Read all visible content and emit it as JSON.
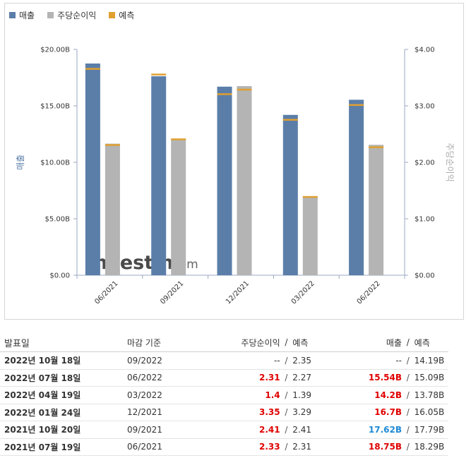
{
  "legend": [
    {
      "label": "매출",
      "color": "#5b7ea9"
    },
    {
      "label": "주당순이익",
      "color": "#b4b4b4"
    },
    {
      "label": "예측",
      "color": "#e0a030"
    }
  ],
  "chart_data": {
    "type": "bar",
    "categories": [
      "06/2021",
      "09/2021",
      "12/2021",
      "03/2022",
      "06/2022"
    ],
    "series": [
      {
        "name": "매출",
        "axis": "left",
        "values": [
          18.75,
          17.62,
          16.7,
          14.2,
          15.54
        ],
        "forecast": [
          18.29,
          17.79,
          16.05,
          13.78,
          15.09
        ]
      },
      {
        "name": "주당순이익",
        "axis": "right",
        "values": [
          2.33,
          2.41,
          3.35,
          1.4,
          2.31
        ],
        "forecast": [
          2.31,
          2.41,
          3.29,
          1.39,
          2.27
        ]
      }
    ],
    "left_axis": {
      "label": "매출",
      "ticks": [
        "$0.00",
        "$5.00B",
        "$10.00B",
        "$15.00B",
        "$20.00B"
      ],
      "ylim": [
        0,
        20
      ]
    },
    "right_axis": {
      "label": "주당순이익",
      "ticks": [
        "$0.00",
        "$1.00",
        "$2.00",
        "$3.00",
        "$4.00"
      ],
      "ylim": [
        0,
        4
      ]
    },
    "watermark": "Investing.com"
  },
  "table": {
    "headers": {
      "date": "발표일",
      "end": "마감 기준",
      "eps": "주당순이익",
      "slash": "/",
      "eps_f": "예측",
      "rev": "매출",
      "rev_f": "예측"
    },
    "rows": [
      {
        "date": "2022년 10월 18일",
        "end": "09/2022",
        "eps": "--",
        "eps_color": "plain",
        "eps_f": "2.35",
        "rev": "--",
        "rev_color": "plain",
        "rev_f": "14.19B"
      },
      {
        "date": "2022년 07월 18일",
        "end": "06/2022",
        "eps": "2.31",
        "eps_color": "red",
        "eps_f": "2.27",
        "rev": "15.54B",
        "rev_color": "red",
        "rev_f": "15.09B"
      },
      {
        "date": "2022년 04월 19일",
        "end": "03/2022",
        "eps": "1.4",
        "eps_color": "red",
        "eps_f": "1.39",
        "rev": "14.2B",
        "rev_color": "red",
        "rev_f": "13.78B"
      },
      {
        "date": "2022년 01월 24일",
        "end": "12/2021",
        "eps": "3.35",
        "eps_color": "red",
        "eps_f": "3.29",
        "rev": "16.7B",
        "rev_color": "red",
        "rev_f": "16.05B"
      },
      {
        "date": "2021년 10월 20일",
        "end": "09/2021",
        "eps": "2.41",
        "eps_color": "red",
        "eps_f": "2.41",
        "rev": "17.62B",
        "rev_color": "blue",
        "rev_f": "17.79B"
      },
      {
        "date": "2021년 07월 19일",
        "end": "06/2021",
        "eps": "2.33",
        "eps_color": "red",
        "eps_f": "2.31",
        "rev": "18.75B",
        "rev_color": "red",
        "rev_f": "18.29B"
      }
    ]
  }
}
